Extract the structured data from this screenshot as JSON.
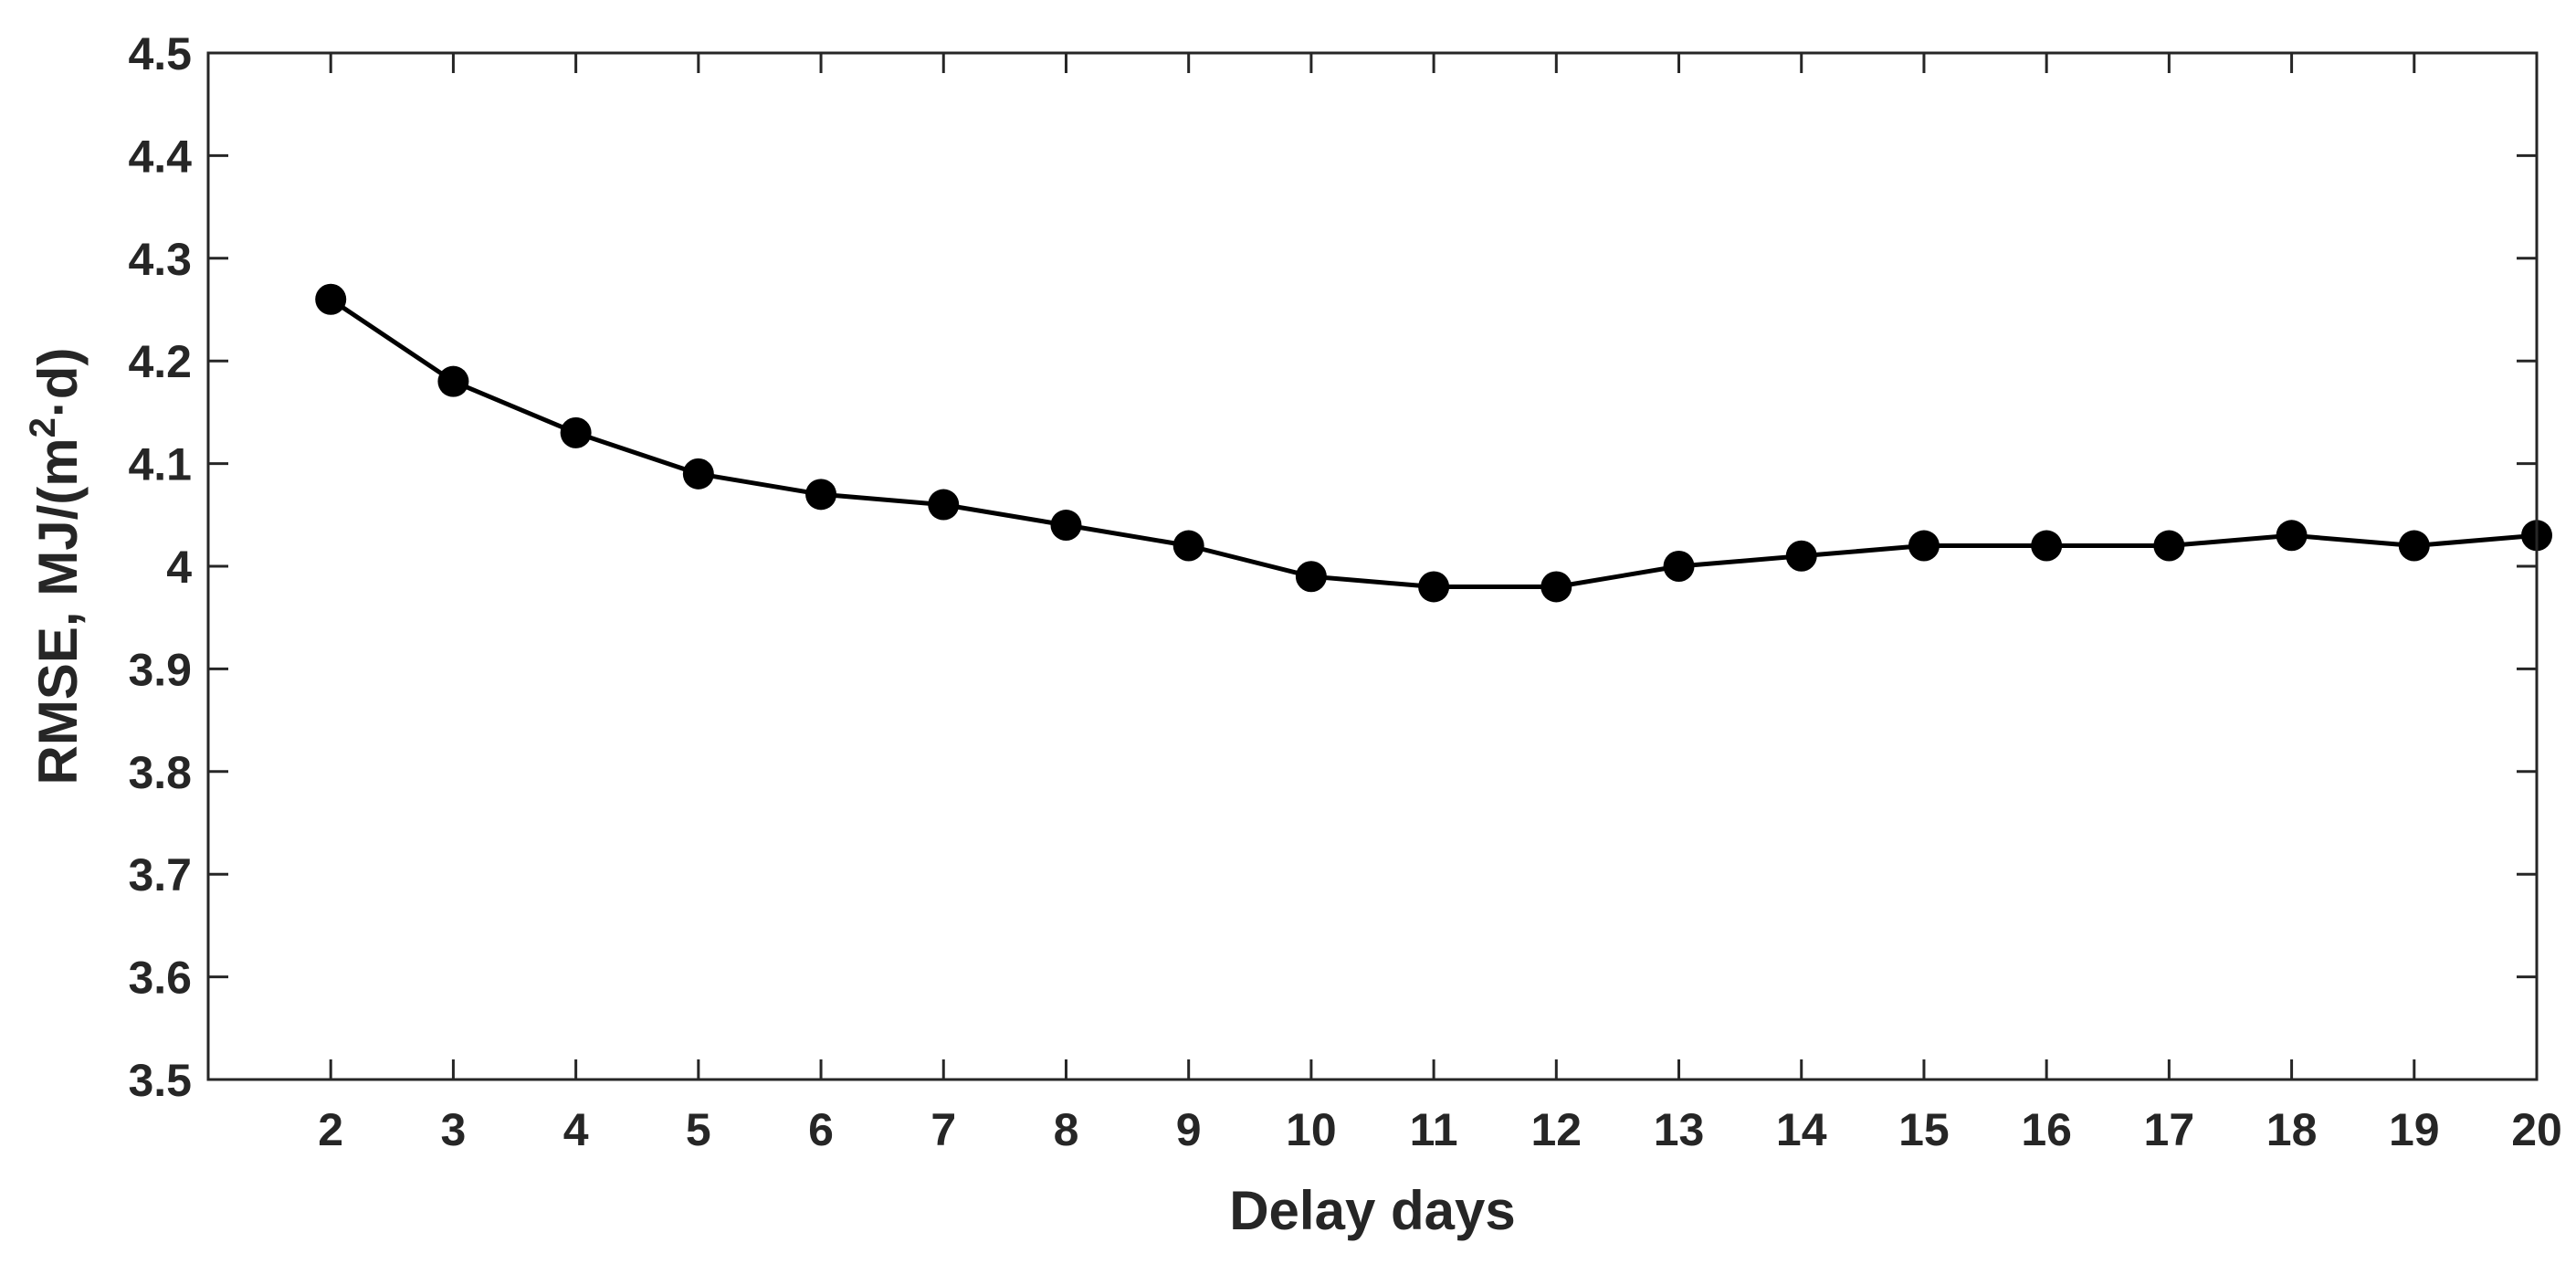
{
  "chart_data": {
    "type": "line",
    "xlabel": "Delay days",
    "ylabel": {
      "base": "RMSE, MJ/(m",
      "superscript": "2",
      "suffix": "·d)",
      "full": "RMSE, MJ/(m²·d)"
    },
    "xlim": [
      1,
      20
    ],
    "ylim": [
      3.5,
      4.5
    ],
    "x_ticks": [
      2,
      3,
      4,
      5,
      6,
      7,
      8,
      9,
      10,
      11,
      12,
      13,
      14,
      15,
      16,
      17,
      18,
      19,
      20
    ],
    "x_tick_labels": [
      "2",
      "3",
      "4",
      "5",
      "6",
      "7",
      "8",
      "9",
      "10",
      "11",
      "12",
      "13",
      "14",
      "15",
      "16",
      "17",
      "18",
      "19",
      "20"
    ],
    "y_ticks": [
      3.5,
      3.6,
      3.7,
      3.8,
      3.9,
      4.0,
      4.1,
      4.2,
      4.3,
      4.4,
      4.5
    ],
    "y_tick_labels": [
      "3.5",
      "3.6",
      "3.7",
      "3.8",
      "3.9",
      "4",
      "4.1",
      "4.2",
      "4.3",
      "4.4",
      "4.5"
    ],
    "grid": false,
    "series": [
      {
        "x": [
          2,
          3,
          4,
          5,
          6,
          7,
          8,
          9,
          10,
          11,
          12,
          13,
          14,
          15,
          16,
          17,
          18,
          19,
          20
        ],
        "values": [
          4.26,
          4.18,
          4.13,
          4.09,
          4.07,
          4.06,
          4.04,
          4.02,
          3.99,
          3.98,
          3.98,
          4.0,
          4.01,
          4.02,
          4.02,
          4.02,
          4.03,
          4.02,
          4.03
        ],
        "color": "#000000",
        "marker": "filled-circle"
      }
    ]
  }
}
